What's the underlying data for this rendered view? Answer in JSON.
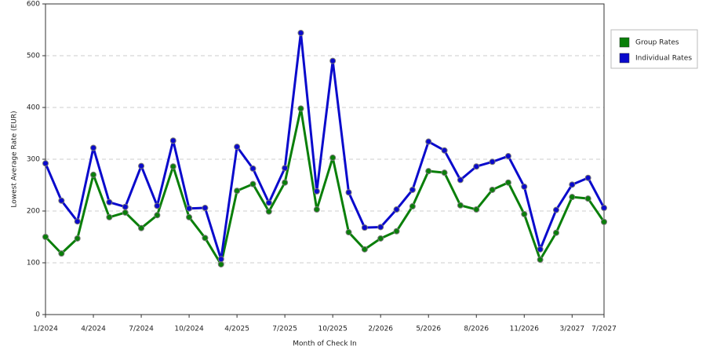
{
  "chart_data": {
    "type": "line",
    "x_label": "Month of Check In",
    "y_label": "Lowest Average Rate (EUR)",
    "categories": [
      "1/2024",
      null,
      null,
      "4/2024",
      null,
      null,
      "7/2024",
      null,
      null,
      "10/2024",
      null,
      null,
      "4/2025",
      null,
      null,
      "7/2025",
      null,
      null,
      "10/2025",
      null,
      null,
      "2/2026",
      null,
      null,
      "5/2026",
      null,
      null,
      "8/2026",
      null,
      null,
      "11/2026",
      null,
      null,
      "3/2027",
      null,
      "7/2027"
    ],
    "series": [
      {
        "name": "Group Rates",
        "color": "#0a7f0a",
        "values": [
          150,
          118,
          147,
          270,
          188,
          197,
          167,
          192,
          286,
          188,
          148,
          97,
          239,
          252,
          199,
          255,
          398,
          203,
          303,
          159,
          126,
          147,
          161,
          209,
          277,
          274,
          211,
          203,
          241,
          255,
          194,
          106,
          158,
          227,
          224,
          179
        ]
      },
      {
        "name": "Individual Rates",
        "color": "#0a0acc",
        "values": [
          292,
          220,
          180,
          322,
          217,
          208,
          287,
          210,
          336,
          205,
          206,
          107,
          324,
          282,
          216,
          283,
          544,
          238,
          490,
          236,
          168,
          169,
          203,
          241,
          334,
          317,
          260,
          286,
          295,
          306,
          247,
          126,
          202,
          251,
          264,
          206
        ]
      }
    ],
    "ylim": [
      0,
      600
    ],
    "yticks": [
      0,
      100,
      200,
      300,
      400,
      500,
      600
    ],
    "grid": true,
    "legend": "right"
  }
}
